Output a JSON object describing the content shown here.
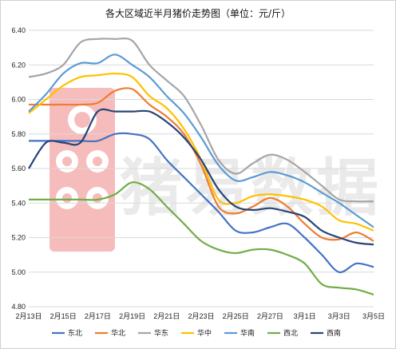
{
  "chart_data": {
    "type": "line",
    "title": "各大区域近半月猪价走势图（单位：元/斤）",
    "watermark": "猪易数据",
    "x": [
      "2月13日",
      "2月14日",
      "2月15日",
      "2月16日",
      "2月17日",
      "2月18日",
      "2月19日",
      "2月20日",
      "2月21日",
      "2月22日",
      "2月23日",
      "2月24日",
      "2月25日",
      "2月26日",
      "2月27日",
      "2月28日",
      "3月1日",
      "3月2日",
      "3月3日",
      "3月4日",
      "3月5日"
    ],
    "x_tick_labels": [
      "2月13日",
      "2月15日",
      "2月17日",
      "2月19日",
      "2月21日",
      "2月23日",
      "2月25日",
      "2月27日",
      "3月1日",
      "3月3日",
      "3月5日"
    ],
    "ylim": [
      4.8,
      6.4
    ],
    "y_ticks": [
      "4.80",
      "5.00",
      "5.20",
      "5.40",
      "5.60",
      "5.80",
      "6.00",
      "6.20",
      "6.40"
    ],
    "grid": true,
    "legend_position": "bottom",
    "series": [
      {
        "name": "东北",
        "color": "#4472c4",
        "values": [
          5.76,
          5.76,
          5.76,
          5.76,
          5.76,
          5.8,
          5.8,
          5.77,
          5.65,
          5.55,
          5.45,
          5.35,
          5.24,
          5.23,
          5.26,
          5.28,
          5.2,
          5.1,
          5.0,
          5.05,
          5.03
        ]
      },
      {
        "name": "华北",
        "color": "#ed7d31",
        "values": [
          5.97,
          5.97,
          5.97,
          5.97,
          5.98,
          6.05,
          6.06,
          5.97,
          5.9,
          5.8,
          5.62,
          5.38,
          5.34,
          5.38,
          5.43,
          5.38,
          5.28,
          5.2,
          5.19,
          5.23,
          5.18
        ]
      },
      {
        "name": "华东",
        "color": "#a5a5a5",
        "values": [
          6.13,
          6.15,
          6.2,
          6.33,
          6.35,
          6.35,
          6.34,
          6.2,
          6.11,
          6.02,
          5.85,
          5.65,
          5.57,
          5.63,
          5.68,
          5.65,
          5.58,
          5.5,
          5.42,
          5.41,
          5.41
        ]
      },
      {
        "name": "华中",
        "color": "#ffc000",
        "values": [
          5.92,
          6.0,
          6.08,
          6.13,
          6.14,
          6.15,
          6.13,
          6.02,
          5.95,
          5.83,
          5.65,
          5.42,
          5.4,
          5.44,
          5.45,
          5.44,
          5.42,
          5.38,
          5.3,
          5.28,
          5.24
        ]
      },
      {
        "name": "华南",
        "color": "#5b9bd5",
        "values": [
          5.93,
          6.03,
          6.15,
          6.21,
          6.21,
          6.26,
          6.2,
          6.13,
          6.02,
          5.92,
          5.78,
          5.62,
          5.53,
          5.55,
          5.58,
          5.56,
          5.52,
          5.46,
          5.4,
          5.33,
          5.26
        ]
      },
      {
        "name": "西北",
        "color": "#70ad47",
        "values": [
          5.42,
          5.42,
          5.42,
          5.42,
          5.42,
          5.45,
          5.52,
          5.48,
          5.38,
          5.28,
          5.18,
          5.13,
          5.11,
          5.13,
          5.13,
          5.1,
          5.05,
          4.93,
          4.91,
          4.9,
          4.87
        ]
      },
      {
        "name": "西南",
        "color": "#264478",
        "values": [
          5.6,
          5.75,
          5.75,
          5.75,
          5.93,
          5.93,
          5.93,
          5.93,
          5.87,
          5.78,
          5.65,
          5.48,
          5.38,
          5.36,
          5.37,
          5.35,
          5.32,
          5.24,
          5.2,
          5.17,
          5.16
        ]
      }
    ]
  }
}
